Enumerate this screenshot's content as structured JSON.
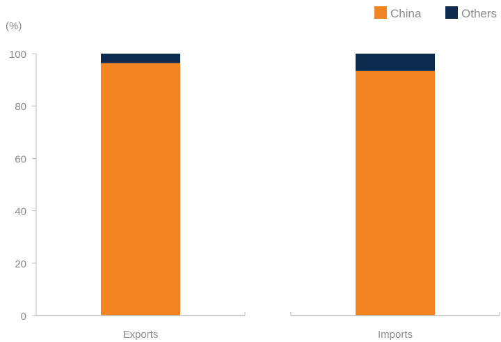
{
  "chart_data": {
    "type": "bar",
    "stacked": true,
    "unit_label": "(%)",
    "categories": [
      "Exports",
      "Imports"
    ],
    "series": [
      {
        "name": "China",
        "color": "#f28423",
        "values": [
          96.4,
          93.4
        ]
      },
      {
        "name": "Others",
        "color": "#0d2b4e",
        "values": [
          3.6,
          6.6
        ]
      }
    ],
    "ylim": [
      0,
      100
    ],
    "yticks": [
      0,
      20,
      40,
      60,
      80,
      100
    ],
    "grid": false,
    "legend_position": "top-right"
  }
}
